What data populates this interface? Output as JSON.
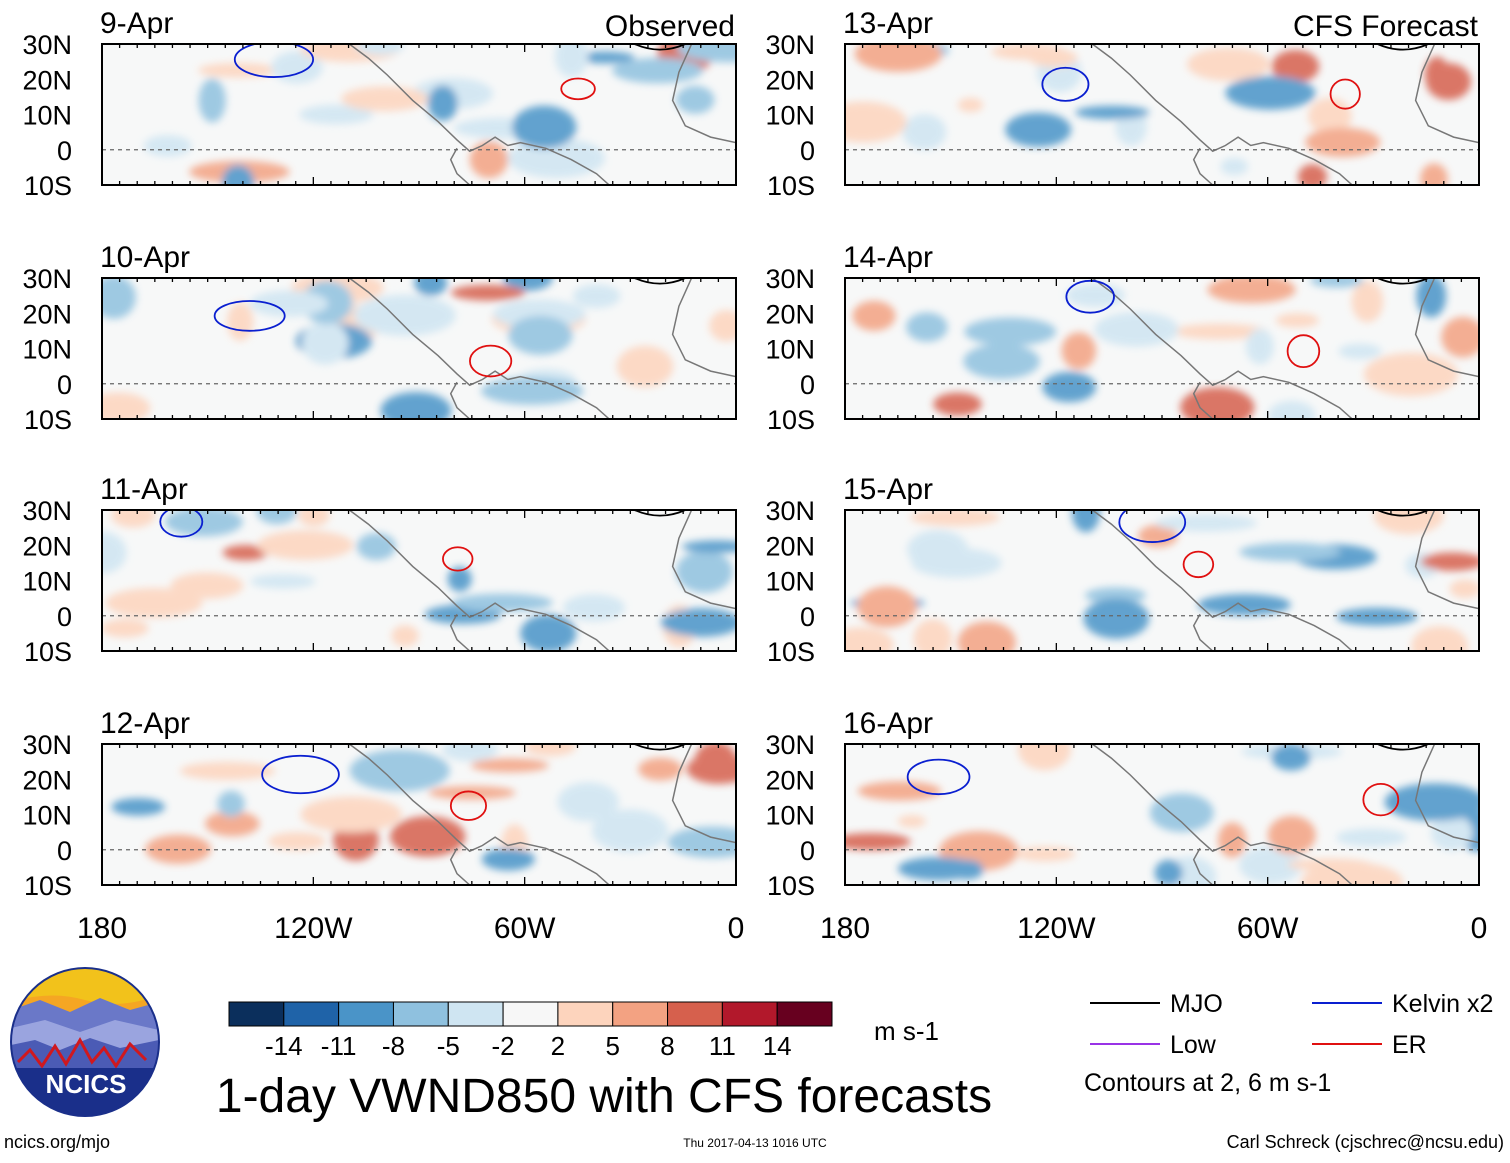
{
  "header": {
    "left_label": "Observed",
    "right_label": "CFS Forecast"
  },
  "panels": [
    {
      "date": "9-Apr",
      "source": "observed"
    },
    {
      "date": "10-Apr",
      "source": "observed"
    },
    {
      "date": "11-Apr",
      "source": "observed"
    },
    {
      "date": "12-Apr",
      "source": "observed"
    },
    {
      "date": "13-Apr",
      "source": "forecast"
    },
    {
      "date": "14-Apr",
      "source": "forecast"
    },
    {
      "date": "15-Apr",
      "source": "forecast"
    },
    {
      "date": "16-Apr",
      "source": "forecast"
    }
  ],
  "lat_labels": [
    "30N",
    "20N",
    "10N",
    "0",
    "10S"
  ],
  "lon_labels": [
    "180",
    "120W",
    "60W",
    "0"
  ],
  "colorbar": {
    "tick_labels": [
      "-14",
      "-11",
      "-8",
      "-5",
      "-2",
      "2",
      "5",
      "8",
      "11",
      "14"
    ],
    "colors": [
      "#0b2f5c",
      "#1f63a8",
      "#4a94c8",
      "#8fc1df",
      "#cfe5f2",
      "#f7f7f7",
      "#fdd4bd",
      "#f3a282",
      "#d6604d",
      "#b2182b",
      "#67001f"
    ],
    "units": "m s-1"
  },
  "legend": {
    "items": [
      {
        "label": "MJO",
        "color": "#000000"
      },
      {
        "label": "Kelvin x2",
        "color": "#0a1fd0"
      },
      {
        "label": "Low",
        "color": "#9933e6"
      },
      {
        "label": "ER",
        "color": "#e01010"
      }
    ],
    "note": "Contours at 2, 6 m s-1"
  },
  "title": "1-day VWND850 with CFS forecasts",
  "logo_text": "NCICS",
  "footer": {
    "url": "ncics.org/mjo",
    "timestamp": "Thu 2017-04-13 1016 UTC",
    "credit": "Carl Schreck (cjschrec@ncsu.edu)"
  }
}
